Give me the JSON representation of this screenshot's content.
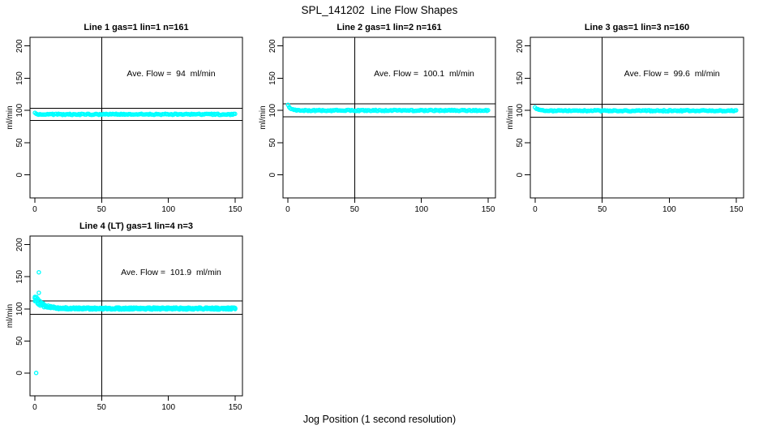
{
  "chart_data": {
    "type": "scatter",
    "title": "SPL_141202  Line Flow Shapes",
    "xlabel": "Jog Position (1 second resolution)",
    "ylabel": "ml/min",
    "x_ticks": [
      0,
      50,
      100,
      150
    ],
    "y_ticks": [
      0,
      50,
      100,
      150,
      200
    ],
    "xlim": [
      0,
      150
    ],
    "ylim": [
      0,
      200
    ],
    "grid": "off",
    "legend": "none",
    "vline_x": 50,
    "point_color": "#00FFFF",
    "axis_color": "#000000",
    "background_color": "#FFFFFF",
    "panels": [
      {
        "title": "Line 1 gas=1 lin=1 n=161",
        "annotation": "Ave. Flow =  94  ml/min",
        "ave_flow": 94,
        "n_points": 161,
        "n_runs": 1,
        "series_model": {
          "start": 96,
          "settle": 94,
          "tau": 1.5,
          "noise": 0.9
        },
        "ref_lines": [
          84.6,
          103.4
        ],
        "outliers": []
      },
      {
        "title": "Line 2 gas=1 lin=2 n=161",
        "annotation": "Ave. Flow =  100.1  ml/min",
        "ave_flow": 100.1,
        "n_points": 161,
        "n_runs": 1,
        "series_model": {
          "start": 108,
          "settle": 100,
          "tau": 2.5,
          "noise": 0.9
        },
        "ref_lines": [
          90.1,
          110.1
        ],
        "outliers": []
      },
      {
        "title": "Line 3 gas=1 lin=3 n=160",
        "annotation": "Ave. Flow =  99.6  ml/min",
        "ave_flow": 99.6,
        "n_points": 160,
        "n_runs": 1,
        "series_model": {
          "start": 104,
          "settle": 99.6,
          "tau": 2,
          "noise": 0.9
        },
        "ref_lines": [
          89.6,
          109.6
        ],
        "outliers": []
      },
      {
        "title": "Line 4 (LT) gas=1 lin=4 n=3",
        "annotation": "Ave. Flow =  101.9  ml/min",
        "ave_flow": 101.9,
        "n_points": 151,
        "n_runs": 3,
        "series_model": {
          "start": 120,
          "settle": 100.5,
          "tau": 6,
          "noise": 1.6
        },
        "ref_lines": [
          91.7,
          112.1
        ],
        "outliers": [
          [
            1,
            0
          ],
          [
            3,
            157
          ],
          [
            3,
            125
          ]
        ]
      }
    ]
  }
}
